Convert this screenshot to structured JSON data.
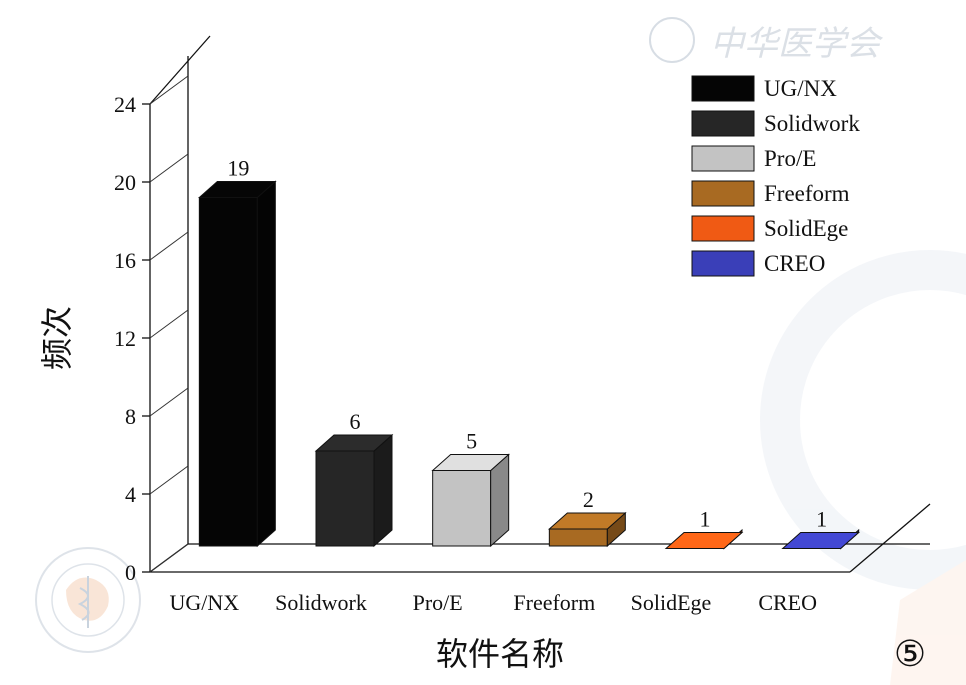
{
  "chart_data": {
    "type": "bar",
    "categories": [
      "UG/NX",
      "Solidwork",
      "Pro/E",
      "Freeform",
      "SolidEge",
      "CREO"
    ],
    "values": [
      19,
      6,
      5,
      2,
      1,
      1
    ],
    "data_labels": [
      "19",
      "6",
      "5",
      "2",
      "1",
      "1"
    ],
    "colors": [
      "#050505",
      "#262626",
      "#c3c3c3",
      "#a86a22",
      "#f05a14",
      "#3a3fb8"
    ],
    "ylabel": "频次",
    "xlabel": "软件名称",
    "ylim": [
      0,
      24
    ],
    "yticks": [
      "0",
      "4",
      "8",
      "12",
      "16",
      "20",
      "24"
    ],
    "legend": [
      "UG/NX",
      "Solidwork",
      "Pro/E",
      "Freeform",
      "SolidEge",
      "CREO"
    ],
    "legend_position": "top-right",
    "panel_label": "⑤",
    "grid": false,
    "style": "3d-bar"
  },
  "watermark_text": "中华医学会"
}
